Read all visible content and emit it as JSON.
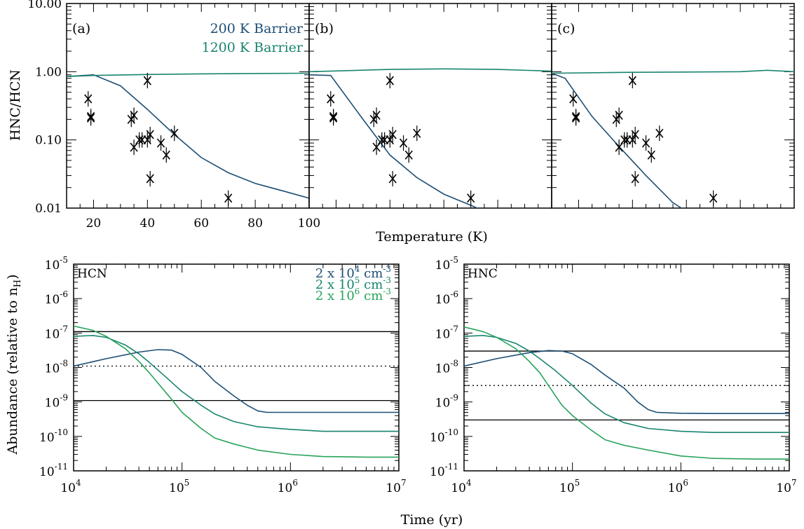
{
  "colors": {
    "c200": "#1d4e74",
    "c1200": "#18846f",
    "d1": "#1d4e74",
    "d2": "#18846f",
    "d3": "#27a35a",
    "obs": "#000000"
  },
  "top": {
    "ylabel": "HNC/HCN",
    "xlabel": "Temperature (K)",
    "ytick_labels": [
      "0.01",
      "0.10",
      "1.00",
      "10.00"
    ],
    "xtick_labels": [
      "20",
      "40",
      "60",
      "80",
      "100"
    ],
    "legend": [
      "200 K Barrier",
      "1200 K Barrier"
    ],
    "panel_labels": [
      "(a)",
      "(b)",
      "(c)"
    ]
  },
  "bottom": {
    "ylabel": "Abundance (relative to n",
    "ylabel_sub": "H",
    "ylabel_close": ")",
    "xlabel": "Time (yr)",
    "legend": [
      {
        "base": "2 x 10",
        "exp": "4",
        "unit": " cm",
        "uexp": "-3"
      },
      {
        "base": "2 x 10",
        "exp": "5",
        "unit": " cm",
        "uexp": "-3"
      },
      {
        "base": "2 x 10",
        "exp": "6",
        "unit": " cm",
        "uexp": "-3"
      }
    ],
    "panel_labels": [
      "HCN",
      "HNC"
    ],
    "tick_base": "10",
    "y_exps": [
      "-11",
      "-10",
      "-9",
      "-8",
      "-7",
      "-6",
      "-5"
    ],
    "x_exps": [
      "4",
      "5",
      "6",
      "7"
    ]
  },
  "chart_data": [
    {
      "type": "line",
      "panel": "(a)",
      "title": "",
      "xlabel": "Temperature (K)",
      "ylabel": "HNC/HCN",
      "xlim": [
        10,
        100
      ],
      "ylim": [
        0.01,
        10
      ],
      "yscale": "log",
      "series": [
        {
          "name": "200 K Barrier",
          "x": [
            10,
            20,
            30,
            40,
            50,
            60,
            70,
            80,
            90,
            100
          ],
          "y": [
            0.85,
            0.9,
            0.62,
            0.28,
            0.12,
            0.055,
            0.033,
            0.023,
            0.018,
            0.014
          ]
        },
        {
          "name": "1200 K Barrier",
          "x": [
            10,
            20,
            40,
            60,
            80,
            100
          ],
          "y": [
            0.85,
            0.88,
            0.91,
            0.93,
            0.94,
            0.95
          ]
        }
      ],
      "observations": {
        "x": [
          18,
          19,
          19,
          34,
          35,
          35,
          37,
          38,
          40,
          40,
          41,
          41,
          45,
          47,
          50,
          70
        ],
        "y": [
          0.4,
          0.22,
          0.21,
          0.2,
          0.23,
          0.078,
          0.1,
          0.1,
          0.1,
          0.74,
          0.12,
          0.027,
          0.09,
          0.06,
          0.125,
          0.014
        ]
      }
    },
    {
      "type": "line",
      "panel": "(b)",
      "title": "",
      "xlabel": "Temperature (K)",
      "ylabel": "HNC/HCN",
      "xlim": [
        10,
        100
      ],
      "ylim": [
        0.01,
        10
      ],
      "yscale": "log",
      "series": [
        {
          "name": "200 K Barrier",
          "x": [
            10,
            18,
            30,
            40,
            50,
            60,
            70,
            75
          ],
          "y": [
            0.9,
            0.88,
            0.2,
            0.06,
            0.028,
            0.016,
            0.011,
            0.009
          ]
        },
        {
          "name": "1200 K Barrier",
          "x": [
            10,
            40,
            60,
            80,
            100
          ],
          "y": [
            1.0,
            1.08,
            1.1,
            1.08,
            1.02
          ]
        }
      ],
      "observations": {
        "x": [
          18,
          19,
          19,
          34,
          35,
          35,
          37,
          38,
          40,
          40,
          41,
          41,
          45,
          47,
          50,
          70
        ],
        "y": [
          0.4,
          0.22,
          0.21,
          0.2,
          0.23,
          0.078,
          0.1,
          0.1,
          0.1,
          0.74,
          0.12,
          0.027,
          0.09,
          0.06,
          0.125,
          0.014
        ]
      }
    },
    {
      "type": "line",
      "panel": "(c)",
      "title": "",
      "xlabel": "Temperature (K)",
      "ylabel": "HNC/HCN",
      "xlim": [
        10,
        100
      ],
      "ylim": [
        0.01,
        10
      ],
      "yscale": "log",
      "series": [
        {
          "name": "200 K Barrier",
          "x": [
            10,
            15,
            25,
            35,
            45,
            55,
            60
          ],
          "y": [
            0.95,
            0.8,
            0.22,
            0.08,
            0.03,
            0.012,
            0.009
          ]
        },
        {
          "name": "1200 K Barrier",
          "x": [
            10,
            40,
            60,
            80,
            90,
            100
          ],
          "y": [
            0.95,
            0.98,
            0.99,
            1.0,
            1.05,
            1.0
          ]
        }
      ],
      "observations": {
        "x": [
          18,
          19,
          19,
          34,
          35,
          35,
          37,
          38,
          40,
          40,
          41,
          41,
          45,
          47,
          50,
          70
        ],
        "y": [
          0.4,
          0.22,
          0.21,
          0.2,
          0.23,
          0.078,
          0.1,
          0.1,
          0.1,
          0.74,
          0.12,
          0.027,
          0.09,
          0.06,
          0.125,
          0.014
        ]
      }
    },
    {
      "type": "line",
      "panel": "HCN",
      "title": "",
      "xlabel": "Time (yr)",
      "ylabel": "Abundance (relative to nH)",
      "xlim": [
        10000.0,
        10000000.0
      ],
      "ylim": [
        1e-11,
        1e-05
      ],
      "xscale": "log",
      "yscale": "log",
      "series": [
        {
          "name": "2 x 10^4 cm^-3",
          "x": [
            10000.0,
            20000.0,
            40000.0,
            60000.0,
            80000.0,
            100000.0,
            150000.0,
            200000.0,
            300000.0,
            400000.0,
            500000.0,
            600000.0,
            800000.0,
            1000000.0,
            2000000.0,
            5000000.0,
            10000000.0
          ],
          "y": [
            1.1e-08,
            1.8e-08,
            2.8e-08,
            3.3e-08,
            3.2e-08,
            2.4e-08,
            1e-08,
            4e-09,
            1.5e-09,
            8e-10,
            5.5e-10,
            5e-10,
            5e-10,
            5e-10,
            5e-10,
            5e-10,
            5e-10
          ]
        },
        {
          "name": "2 x 10^5 cm^-3",
          "x": [
            10000.0,
            15000.0,
            20000.0,
            30000.0,
            40000.0,
            50000.0,
            70000.0,
            100000.0,
            150000.0,
            200000.0,
            300000.0,
            500000.0,
            1000000.0,
            2000000.0,
            5000000.0,
            10000000.0
          ],
          "y": [
            8e-08,
            8.5e-08,
            7.5e-08,
            4.5e-08,
            2.5e-08,
            1.4e-08,
            5.5e-09,
            2e-09,
            8e-10,
            4.5e-10,
            2.7e-10,
            1.9e-10,
            1.6e-10,
            1.4e-10,
            1.4e-10,
            1.4e-10
          ]
        },
        {
          "name": "2 x 10^6 cm^-3",
          "x": [
            10000.0,
            15000.0,
            20000.0,
            30000.0,
            40000.0,
            50000.0,
            60000.0,
            80000.0,
            100000.0,
            150000.0,
            200000.0,
            300000.0,
            500000.0,
            1000000.0,
            2000000.0,
            5000000.0,
            10000000.0
          ],
          "y": [
            1.6e-07,
            1.2e-07,
            8e-08,
            3.5e-08,
            1.5e-08,
            7e-09,
            3.5e-09,
            1.2e-09,
            5e-10,
            1.7e-10,
            9e-11,
            6e-11,
            4e-11,
            3e-11,
            2.6e-11,
            2.5e-11,
            2.5e-11
          ]
        }
      ],
      "observed_levels": {
        "upper": 1.1e-07,
        "mean": 1.1e-08,
        "lower": 1.1e-09
      }
    },
    {
      "type": "line",
      "panel": "HNC",
      "title": "",
      "xlabel": "Time (yr)",
      "ylabel": "Abundance (relative to nH)",
      "xlim": [
        10000.0,
        10000000.0
      ],
      "ylim": [
        1e-11,
        1e-05
      ],
      "xscale": "log",
      "yscale": "log",
      "series": [
        {
          "name": "2 x 10^4 cm^-3",
          "x": [
            10000.0,
            20000.0,
            40000.0,
            60000.0,
            80000.0,
            100000.0,
            150000.0,
            200000.0,
            300000.0,
            400000.0,
            500000.0,
            600000.0,
            800000.0,
            1000000.0,
            2000000.0,
            5000000.0,
            10000000.0
          ],
          "y": [
            1.1e-08,
            1.8e-08,
            2.7e-08,
            3.1e-08,
            3e-08,
            2.5e-08,
            1.2e-08,
            6e-09,
            2.5e-09,
            1e-09,
            6e-10,
            5e-10,
            4.8e-10,
            4.7e-10,
            4.6e-10,
            4.6e-10,
            4.6e-10
          ]
        },
        {
          "name": "2 x 10^5 cm^-3",
          "x": [
            10000.0,
            15000.0,
            20000.0,
            30000.0,
            40000.0,
            50000.0,
            70000.0,
            100000.0,
            150000.0,
            200000.0,
            300000.0,
            500000.0,
            1000000.0,
            2000000.0,
            5000000.0,
            10000000.0
          ],
          "y": [
            8e-08,
            8.5e-08,
            7.5e-08,
            5e-08,
            3e-08,
            1.8e-08,
            8e-09,
            3e-09,
            9e-10,
            4.5e-10,
            2.5e-10,
            1.7e-10,
            1.4e-10,
            1.3e-10,
            1.3e-10,
            1.3e-10
          ]
        },
        {
          "name": "2 x 10^6 cm^-3",
          "x": [
            10000.0,
            15000.0,
            20000.0,
            30000.0,
            40000.0,
            50000.0,
            60000.0,
            80000.0,
            100000.0,
            150000.0,
            200000.0,
            300000.0,
            500000.0,
            1000000.0,
            2000000.0,
            5000000.0,
            10000000.0
          ],
          "y": [
            1.5e-07,
            1.1e-07,
            7.5e-08,
            3.5e-08,
            1.5e-08,
            7e-09,
            3e-09,
            8e-10,
            4e-10,
            1.5e-10,
            8e-11,
            5.5e-11,
            4e-11,
            2.7e-11,
            2.3e-11,
            2.2e-11,
            2.2e-11
          ]
        }
      ],
      "observed_levels": {
        "upper": 3e-08,
        "mean": 3e-09,
        "lower": 3e-10
      }
    }
  ]
}
